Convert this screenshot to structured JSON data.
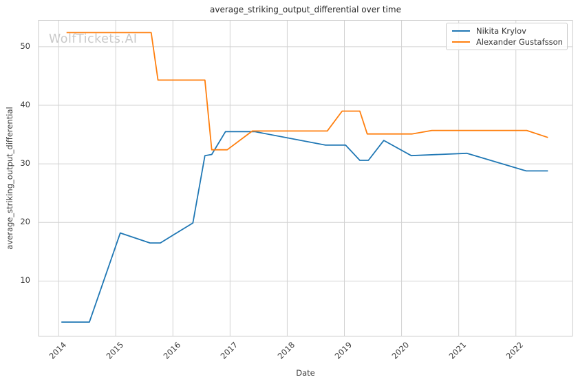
{
  "title": "average_striking_output_differential over time",
  "watermark": "WolfTickets.AI",
  "axes": {
    "xlabel": "Date",
    "ylabel": "average_striking_output_differential"
  },
  "legend": {
    "position": "upper right",
    "entries": [
      "Nikita Krylov",
      "Alexander Gustafsson"
    ]
  },
  "colors": {
    "series_blue": "#1f77b4",
    "series_orange": "#ff7f0e",
    "grid": "#d2d2d2",
    "frame": "#c9c9c9",
    "tick_text": "#3b3b3b",
    "title_text": "#262626",
    "watermark_text": "#c9c9c9"
  },
  "chart_data": {
    "type": "line",
    "title": "average_striking_output_differential over time",
    "xlabel": "Date",
    "ylabel": "average_striking_output_differential",
    "grid": true,
    "legend_position": "upper right",
    "xlim": [
      2013.65,
      2022.99
    ],
    "ylim": [
      0.6,
      54.5
    ],
    "xticks": [
      2014,
      2015,
      2016,
      2017,
      2018,
      2019,
      2020,
      2021,
      2022
    ],
    "yticks": [
      10,
      20,
      30,
      40,
      50
    ],
    "series": [
      {
        "name": "Nikita Krylov",
        "color": "#1f77b4",
        "points": [
          [
            2014.05,
            3.0
          ],
          [
            2014.54,
            3.0
          ],
          [
            2015.08,
            18.2
          ],
          [
            2015.6,
            16.5
          ],
          [
            2015.78,
            16.5
          ],
          [
            2016.35,
            19.9
          ],
          [
            2016.56,
            31.4
          ],
          [
            2016.68,
            31.6
          ],
          [
            2016.92,
            35.5
          ],
          [
            2017.43,
            35.5
          ],
          [
            2018.67,
            33.2
          ],
          [
            2019.02,
            33.2
          ],
          [
            2019.27,
            30.6
          ],
          [
            2019.42,
            30.6
          ],
          [
            2019.69,
            34.0
          ],
          [
            2020.17,
            31.4
          ],
          [
            2021.14,
            31.8
          ],
          [
            2022.18,
            28.8
          ],
          [
            2022.56,
            28.8
          ]
        ]
      },
      {
        "name": "Alexander Gustafsson",
        "color": "#ff7f0e",
        "points": [
          [
            2014.14,
            52.4
          ],
          [
            2015.62,
            52.4
          ],
          [
            2015.74,
            44.3
          ],
          [
            2016.56,
            44.3
          ],
          [
            2016.68,
            32.4
          ],
          [
            2016.95,
            32.4
          ],
          [
            2017.39,
            35.6
          ],
          [
            2018.7,
            35.6
          ],
          [
            2018.96,
            39.0
          ],
          [
            2019.27,
            39.0
          ],
          [
            2019.4,
            35.1
          ],
          [
            2020.18,
            35.1
          ],
          [
            2020.53,
            35.7
          ],
          [
            2022.19,
            35.7
          ],
          [
            2022.56,
            34.5
          ]
        ]
      }
    ]
  }
}
